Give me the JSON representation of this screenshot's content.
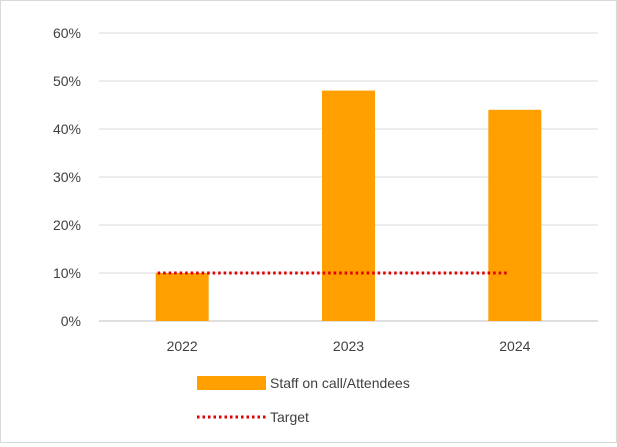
{
  "chart_data": {
    "type": "bar",
    "title": "",
    "xlabel": "",
    "ylabel": "",
    "categories": [
      "2022",
      "2023",
      "2024"
    ],
    "ylim": [
      0,
      0.6
    ],
    "yticks": [
      0,
      0.1,
      0.2,
      0.3,
      0.4,
      0.5,
      0.6
    ],
    "ytick_labels": [
      "0%",
      "10%",
      "20%",
      "30%",
      "40%",
      "50%",
      "60%"
    ],
    "grid": true,
    "legend_position": "bottom",
    "series": [
      {
        "name": "Staff on call/Attendees",
        "kind": "bar",
        "color": "#ff9f00",
        "values": [
          0.1,
          0.48,
          0.44
        ]
      },
      {
        "name": "Target",
        "kind": "line",
        "style": "dotted",
        "color": "#e00000",
        "values": [
          0.1,
          0.1,
          0.1
        ]
      }
    ]
  }
}
